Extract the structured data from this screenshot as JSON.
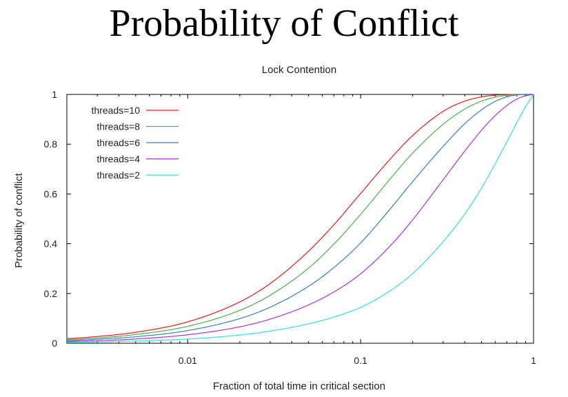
{
  "slide": {
    "title": "Probability of Conflict"
  },
  "chart_data": {
    "type": "line",
    "title": "Lock Contention",
    "xlabel": "Fraction of total time in critical section",
    "ylabel": "Probability of conflict",
    "x_scale": "log",
    "xlim": [
      0.002,
      1
    ],
    "ylim": [
      0,
      1
    ],
    "x_ticks": [
      {
        "value": 0.01,
        "label": "0.01"
      },
      {
        "value": 0.1,
        "label": "0.1"
      },
      {
        "value": 1,
        "label": "1"
      }
    ],
    "y_ticks": [
      {
        "value": 0,
        "label": "0"
      },
      {
        "value": 0.2,
        "label": "0.2"
      },
      {
        "value": 0.4,
        "label": "0.4"
      },
      {
        "value": 0.6,
        "label": "0.6"
      },
      {
        "value": 0.8,
        "label": "0.8"
      },
      {
        "value": 1,
        "label": "1"
      }
    ],
    "legend_position": "top-left",
    "grid": false,
    "x": [
      0.002,
      0.003,
      0.005,
      0.01,
      0.02,
      0.03,
      0.05,
      0.07,
      0.1,
      0.15,
      0.2,
      0.3,
      0.4,
      0.5,
      0.6,
      0.7,
      0.8,
      0.9,
      1
    ],
    "series": [
      {
        "name": "threads=10",
        "color": "#e41a1c",
        "values": [
          0.018,
          0.027,
          0.044,
          0.086,
          0.166,
          0.24,
          0.37,
          0.476,
          0.602,
          0.744,
          0.835,
          0.932,
          0.973,
          0.99,
          0.997,
          0.999,
          1.0,
          1.0,
          1.0
        ]
      },
      {
        "name": "threads=8",
        "color": "#4daf4a",
        "values": [
          0.014,
          0.021,
          0.035,
          0.068,
          0.132,
          0.193,
          0.302,
          0.398,
          0.518,
          0.665,
          0.764,
          0.88,
          0.941,
          0.973,
          0.989,
          0.996,
          0.999,
          1.0,
          1.0
        ]
      },
      {
        "name": "threads=6",
        "color": "#377eb8",
        "values": [
          0.01,
          0.016,
          0.026,
          0.051,
          0.099,
          0.145,
          0.229,
          0.304,
          0.403,
          0.544,
          0.65,
          0.791,
          0.882,
          0.938,
          0.972,
          0.99,
          0.998,
          1.0,
          1.0
        ]
      },
      {
        "name": "threads=4",
        "color": "#b02ed6",
        "values": [
          0.007,
          0.01,
          0.017,
          0.034,
          0.066,
          0.097,
          0.154,
          0.206,
          0.279,
          0.395,
          0.496,
          0.657,
          0.772,
          0.856,
          0.915,
          0.955,
          0.981,
          0.995,
          1.0
        ]
      },
      {
        "name": "threads=2",
        "color": "#33dde0",
        "values": [
          0.004,
          0.005,
          0.009,
          0.017,
          0.033,
          0.049,
          0.078,
          0.105,
          0.144,
          0.213,
          0.28,
          0.408,
          0.519,
          0.623,
          0.721,
          0.808,
          0.886,
          0.951,
          1.0
        ]
      }
    ]
  }
}
